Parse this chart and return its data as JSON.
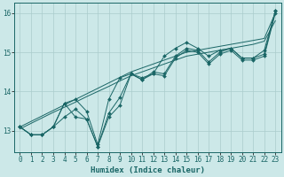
{
  "xlabel": "Humidex (Indice chaleur)",
  "bg_color": "#cce8e8",
  "line_color": "#1a6666",
  "grid_color": "#aacccc",
  "xlim": [
    -0.5,
    23.5
  ],
  "ylim": [
    12.45,
    16.25
  ],
  "yticks": [
    13,
    14,
    15,
    16
  ],
  "xticks": [
    0,
    1,
    2,
    3,
    4,
    5,
    6,
    7,
    8,
    9,
    10,
    11,
    12,
    13,
    14,
    15,
    16,
    17,
    18,
    19,
    20,
    21,
    22,
    23
  ],
  "series1": [
    13.1,
    12.9,
    12.9,
    13.1,
    13.7,
    13.8,
    13.5,
    12.65,
    13.8,
    14.35,
    14.45,
    14.35,
    14.45,
    14.9,
    15.1,
    15.25,
    15.1,
    14.9,
    15.05,
    15.1,
    14.85,
    14.85,
    15.05,
    16.05
  ],
  "series2": [
    13.1,
    12.9,
    12.9,
    13.1,
    13.7,
    13.35,
    13.3,
    12.6,
    13.45,
    13.85,
    14.45,
    14.3,
    14.5,
    14.45,
    14.9,
    15.1,
    15.05,
    14.75,
    15.0,
    15.1,
    14.85,
    14.85,
    14.95,
    16.05
  ],
  "series3": [
    13.1,
    12.9,
    12.9,
    13.1,
    13.35,
    13.55,
    13.3,
    12.6,
    13.35,
    13.65,
    14.45,
    14.3,
    14.45,
    14.4,
    14.85,
    15.05,
    15.0,
    14.7,
    14.95,
    15.05,
    14.8,
    14.8,
    14.9,
    16.0
  ],
  "trend1": [
    13.1,
    13.24,
    13.38,
    13.52,
    13.66,
    13.8,
    13.94,
    14.08,
    14.22,
    14.36,
    14.5,
    14.6,
    14.7,
    14.8,
    14.9,
    15.0,
    15.05,
    15.1,
    15.15,
    15.2,
    15.25,
    15.3,
    15.35,
    16.0
  ],
  "trend2": [
    13.05,
    13.19,
    13.33,
    13.47,
    13.6,
    13.73,
    13.87,
    14.0,
    14.13,
    14.27,
    14.4,
    14.5,
    14.6,
    14.7,
    14.8,
    14.9,
    14.95,
    15.0,
    15.05,
    15.1,
    15.15,
    15.2,
    15.28,
    15.8
  ],
  "font_family": "monospace",
  "label_fontsize": 6.5,
  "tick_fontsize": 5.5
}
